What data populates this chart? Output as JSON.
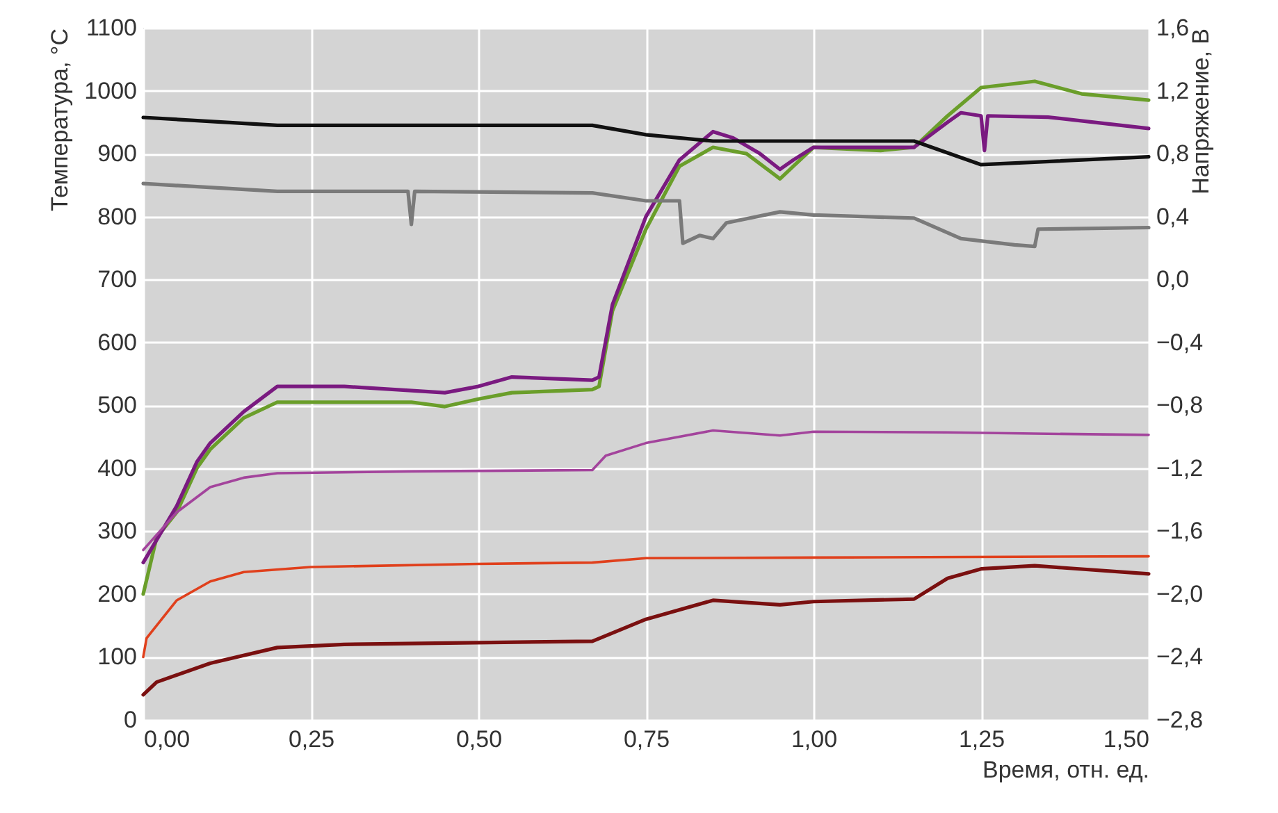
{
  "chart_data": {
    "type": "line",
    "xlabel": "Время, отн. ед.",
    "ylabel": "Температура, °C",
    "y2label": "Напряжение, В",
    "xlim": [
      0,
      1.5
    ],
    "xticks": [
      {
        "value": 0,
        "label": "0,00"
      },
      {
        "value": 0.25,
        "label": "0,25"
      },
      {
        "value": 0.5,
        "label": "0,50"
      },
      {
        "value": 0.75,
        "label": "0,75"
      },
      {
        "value": 1,
        "label": "1,00"
      },
      {
        "value": 1.25,
        "label": "1,25"
      },
      {
        "value": 1.5,
        "label": "1,50"
      }
    ],
    "ylim": [
      0,
      1100
    ],
    "yticks": [
      0,
      100,
      200,
      300,
      400,
      500,
      600,
      700,
      800,
      900,
      1000,
      1100
    ],
    "y2lim": [
      -2.8,
      1.6
    ],
    "y2ticks": [
      {
        "value": -2.8,
        "label": "−2,8"
      },
      {
        "value": -2.4,
        "label": "−2,4"
      },
      {
        "value": -2.0,
        "label": "−2,0"
      },
      {
        "value": -1.6,
        "label": "−1,6"
      },
      {
        "value": -1.2,
        "label": "−1,2"
      },
      {
        "value": -0.8,
        "label": "−0,8"
      },
      {
        "value": -0.4,
        "label": "−0,4"
      },
      {
        "value": 0,
        "label": "0,0"
      },
      {
        "value": 0.4,
        "label": "0,4"
      },
      {
        "value": 0.8,
        "label": "0,8"
      },
      {
        "value": 1.2,
        "label": "1,2"
      },
      {
        "value": 1.6,
        "label": "1,6"
      }
    ],
    "grid": true,
    "legend": false,
    "series": [
      {
        "color": "#6a9e2a",
        "x": [
          0,
          0.02,
          0.05,
          0.08,
          0.1,
          0.15,
          0.2,
          0.3,
          0.4,
          0.45,
          0.5,
          0.55,
          0.67,
          0.68,
          0.7,
          0.75,
          0.8,
          0.85,
          0.9,
          0.95,
          0.97,
          1.0,
          1.1,
          1.15,
          1.2,
          1.25,
          1.33,
          1.4,
          1.5
        ],
        "values": [
          200,
          290,
          330,
          400,
          430,
          480,
          505,
          505,
          505,
          498,
          510,
          520,
          525,
          530,
          650,
          780,
          880,
          910,
          900,
          860,
          880,
          910,
          905,
          910,
          960,
          1005,
          1015,
          995,
          985
        ]
      },
      {
        "color": "#7a1a80",
        "x": [
          0,
          0.05,
          0.08,
          0.1,
          0.15,
          0.2,
          0.3,
          0.45,
          0.5,
          0.55,
          0.67,
          0.68,
          0.7,
          0.75,
          0.8,
          0.85,
          0.88,
          0.92,
          0.95,
          0.97,
          1.0,
          1.15,
          1.2,
          1.22,
          1.25,
          1.255,
          1.26,
          1.35,
          1.5
        ],
        "values": [
          250,
          340,
          410,
          440,
          490,
          530,
          530,
          520,
          530,
          545,
          540,
          545,
          660,
          800,
          890,
          935,
          925,
          900,
          875,
          890,
          910,
          910,
          950,
          965,
          960,
          905,
          960,
          958,
          940
        ]
      },
      {
        "color": "#a3449c",
        "x": [
          0,
          0.05,
          0.1,
          0.15,
          0.2,
          0.4,
          0.67,
          0.69,
          0.75,
          0.85,
          0.95,
          1.0,
          1.2,
          1.33,
          1.5
        ],
        "values": [
          270,
          330,
          370,
          385,
          392,
          395,
          397,
          420,
          440,
          460,
          452,
          458,
          457,
          455,
          453
        ]
      },
      {
        "color": "#e0401c",
        "x": [
          0,
          0.005,
          0.05,
          0.1,
          0.15,
          0.25,
          0.5,
          0.67,
          0.75,
          1.0,
          1.5
        ],
        "values": [
          100,
          130,
          190,
          220,
          235,
          243,
          248,
          250,
          257,
          258,
          260
        ]
      },
      {
        "color": "#7a1010",
        "x": [
          0,
          0.02,
          0.1,
          0.2,
          0.3,
          0.67,
          0.75,
          0.85,
          0.95,
          1.0,
          1.15,
          1.2,
          1.25,
          1.33,
          1.5
        ],
        "values": [
          40,
          60,
          90,
          115,
          120,
          125,
          160,
          190,
          183,
          188,
          192,
          225,
          240,
          245,
          232
        ]
      },
      {
        "color": "#111111",
        "axis": "y2",
        "x": [
          0,
          0.2,
          0.67,
          0.75,
          0.85,
          1.15,
          1.25,
          1.5
        ],
        "values": [
          1.03,
          0.98,
          0.98,
          0.92,
          0.88,
          0.88,
          0.73,
          0.78
        ]
      },
      {
        "color": "#7a7a7a",
        "axis": "y2",
        "x": [
          0,
          0.2,
          0.395,
          0.4,
          0.405,
          0.67,
          0.75,
          0.8,
          0.805,
          0.83,
          0.85,
          0.87,
          0.95,
          1.0,
          1.15,
          1.22,
          1.3,
          1.33,
          1.335,
          1.5
        ],
        "values": [
          0.61,
          0.56,
          0.56,
          0.35,
          0.56,
          0.55,
          0.5,
          0.5,
          0.23,
          0.28,
          0.26,
          0.36,
          0.43,
          0.41,
          0.39,
          0.26,
          0.22,
          0.21,
          0.32,
          0.33
        ]
      }
    ]
  }
}
